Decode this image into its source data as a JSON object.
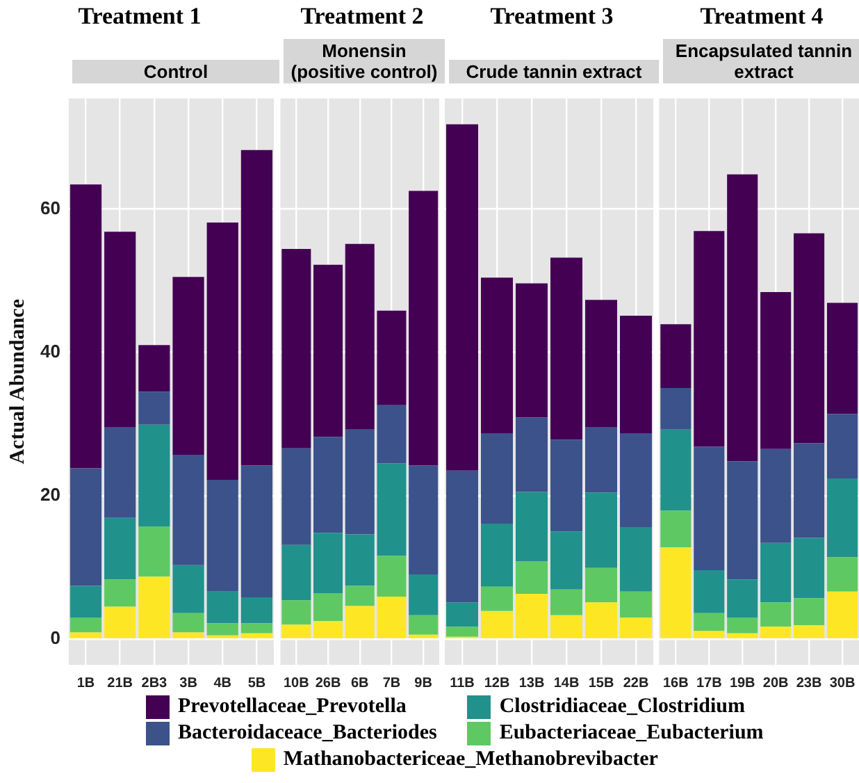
{
  "chart_data": [
    {
      "type": "bar",
      "stacked": true,
      "title": "Treatment 1",
      "subtitle": "Control",
      "ylabel": "Actual Abundance",
      "categories": [
        "1B",
        "21B",
        "2B3",
        "3B",
        "4B",
        "5B"
      ],
      "ylim": [
        -3.6,
        75.4
      ],
      "yticks": [
        0,
        20,
        40,
        60
      ],
      "grid": true,
      "legend": "bottom",
      "series": [
        {
          "name": "Mathanobactericeae_Methanobrevibacter",
          "color": "#fde725",
          "values": [
            0.9,
            4.5,
            8.7,
            0.9,
            0.5,
            0.8
          ]
        },
        {
          "name": "Eubacteriaceae_Eubacterium",
          "color": "#5ec962",
          "values": [
            2.1,
            3.8,
            7.0,
            2.7,
            1.7,
            1.4
          ]
        },
        {
          "name": "Clostridiaceae_Clostridium",
          "color": "#21918c",
          "values": [
            4.4,
            8.6,
            14.2,
            6.7,
            4.4,
            3.6
          ]
        },
        {
          "name": "Bacteroidaceace_Bacteriodes",
          "color": "#3b528b",
          "values": [
            16.4,
            12.6,
            4.6,
            15.4,
            15.6,
            18.4
          ]
        },
        {
          "name": "Prevotellaceae_Prevotella",
          "color": "#440154",
          "values": [
            39.6,
            27.3,
            6.5,
            24.8,
            35.9,
            44.0
          ]
        }
      ]
    },
    {
      "type": "bar",
      "stacked": true,
      "title": "Treatment 2",
      "subtitle": "Monensin (positive control)",
      "categories": [
        "10B",
        "26B",
        "6B",
        "7B",
        "9B"
      ],
      "ylim": [
        -3.6,
        75.4
      ],
      "yticks": [
        0,
        20,
        40,
        60
      ],
      "grid": true,
      "tick_labels": "x",
      "series": [
        {
          "color": "#fde725",
          "values": [
            2.0,
            2.5,
            4.6,
            5.9,
            0.6
          ]
        },
        {
          "color": "#5ec962",
          "values": [
            3.4,
            3.9,
            2.8,
            5.7,
            2.7
          ]
        },
        {
          "color": "#21918c",
          "values": [
            7.7,
            8.4,
            7.2,
            12.9,
            5.7
          ]
        },
        {
          "color": "#3b528b",
          "values": [
            13.5,
            13.4,
            14.6,
            8.1,
            15.2
          ]
        },
        {
          "color": "#440154",
          "values": [
            27.8,
            24.0,
            25.9,
            13.2,
            38.3
          ]
        }
      ]
    },
    {
      "type": "bar",
      "stacked": true,
      "title": "Treatment 3",
      "subtitle": "Crude tannin extract",
      "categories": [
        "11B",
        "12B",
        "13B",
        "14B",
        "15B",
        "22B"
      ],
      "ylim": [
        -3.6,
        75.4
      ],
      "yticks": [
        0,
        20,
        40,
        60
      ],
      "grid": true,
      "tick_labels": "x",
      "series": [
        {
          "color": "#fde725",
          "values": [
            0.3,
            3.9,
            6.3,
            3.3,
            5.1,
            3.0
          ]
        },
        {
          "color": "#5ec962",
          "values": [
            1.4,
            3.4,
            4.5,
            3.6,
            4.8,
            3.6
          ]
        },
        {
          "color": "#21918c",
          "values": [
            3.4,
            8.8,
            9.7,
            8.1,
            10.5,
            9.0
          ]
        },
        {
          "color": "#3b528b",
          "values": [
            18.4,
            12.6,
            10.4,
            12.8,
            9.1,
            13.1
          ]
        },
        {
          "color": "#440154",
          "values": [
            48.3,
            21.7,
            18.7,
            25.4,
            17.8,
            16.4
          ]
        }
      ]
    },
    {
      "type": "bar",
      "stacked": true,
      "title": "Treatment 4",
      "subtitle": "Encapsulated tannin extract",
      "categories": [
        "16B",
        "17B",
        "19B",
        "20B",
        "23B",
        "30B"
      ],
      "ylim": [
        -3.6,
        75.4
      ],
      "yticks": [
        0,
        20,
        40,
        60
      ],
      "grid": true,
      "tick_labels": "x",
      "series": [
        {
          "color": "#fde725",
          "values": [
            12.8,
            1.1,
            0.8,
            1.7,
            1.9,
            6.6
          ]
        },
        {
          "color": "#5ec962",
          "values": [
            5.1,
            2.5,
            2.2,
            3.4,
            3.8,
            4.8
          ]
        },
        {
          "color": "#21918c",
          "values": [
            11.3,
            6.0,
            5.3,
            8.3,
            8.4,
            11.0
          ]
        },
        {
          "color": "#3b528b",
          "values": [
            5.8,
            17.2,
            16.5,
            13.1,
            13.2,
            9.0
          ]
        },
        {
          "color": "#440154",
          "values": [
            8.9,
            30.1,
            40.0,
            21.9,
            29.3,
            15.5
          ]
        }
      ]
    }
  ]
}
